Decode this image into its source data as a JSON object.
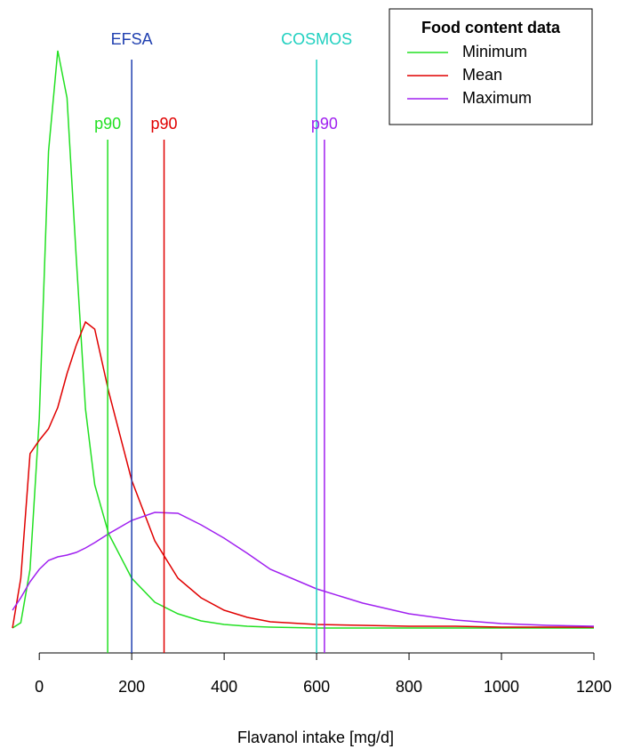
{
  "chart_data": {
    "type": "line",
    "x_label": "Flavanol intake [mg/d]",
    "legend_title": "Food content data",
    "legend_position": "topright",
    "x": [
      -58,
      -40,
      -20,
      0,
      20,
      40,
      60,
      80,
      100,
      120,
      150,
      200,
      250,
      300,
      350,
      400,
      450,
      500,
      600,
      700,
      800,
      900,
      1000,
      1100,
      1200
    ],
    "series": [
      {
        "name": "Minimum",
        "color": "#22e022",
        "values": [
          0,
          6e-05,
          0.00066,
          0.00236,
          0.00536,
          0.00649,
          0.00596,
          0.00416,
          0.00246,
          0.00161,
          0.00106,
          0.00056,
          0.00029,
          0.00016,
          8e-05,
          4e-05,
          2e-05,
          1e-05,
          0,
          0,
          0,
          0,
          0,
          0,
          0
        ]
      },
      {
        "name": "Mean",
        "color": "#e00000",
        "values": [
          0,
          0.00056,
          0.00196,
          0.00211,
          0.00224,
          0.00248,
          0.00286,
          0.00318,
          0.00344,
          0.00336,
          0.00266,
          0.00166,
          0.00098,
          0.00056,
          0.00034,
          0.0002,
          0.00012,
          7e-05,
          4e-05,
          3e-05,
          2e-05,
          2e-05,
          1e-05,
          1e-05,
          1e-05
        ]
      },
      {
        "name": "Maximum",
        "color": "#a020f0",
        "values": [
          0.0002,
          0.00034,
          0.00052,
          0.00066,
          0.00076,
          0.0008,
          0.00082,
          0.00085,
          0.0009,
          0.00096,
          0.00106,
          0.00121,
          0.0013,
          0.00129,
          0.00116,
          0.00101,
          0.00084,
          0.00066,
          0.00044,
          0.00028,
          0.00016,
          9e-05,
          5e-05,
          3e-05,
          2e-05
        ]
      }
    ],
    "references": [
      {
        "label": "EFSA",
        "x": 200,
        "color": "#2040b0"
      },
      {
        "label": "COSMOS",
        "x": 600,
        "color": "#20d0c0"
      }
    ],
    "percentiles": [
      {
        "label": "p90",
        "x": 148,
        "color": "#22e022"
      },
      {
        "label": "p90",
        "x": 270,
        "color": "#e00000"
      },
      {
        "label": "p90",
        "x": 617,
        "color": "#a020f0"
      }
    ],
    "xlim": [
      -60,
      1225
    ],
    "ylim": [
      -0.00026,
      0.00675
    ],
    "xticks": [
      0,
      200,
      400,
      600,
      800,
      1000,
      1200
    ]
  }
}
